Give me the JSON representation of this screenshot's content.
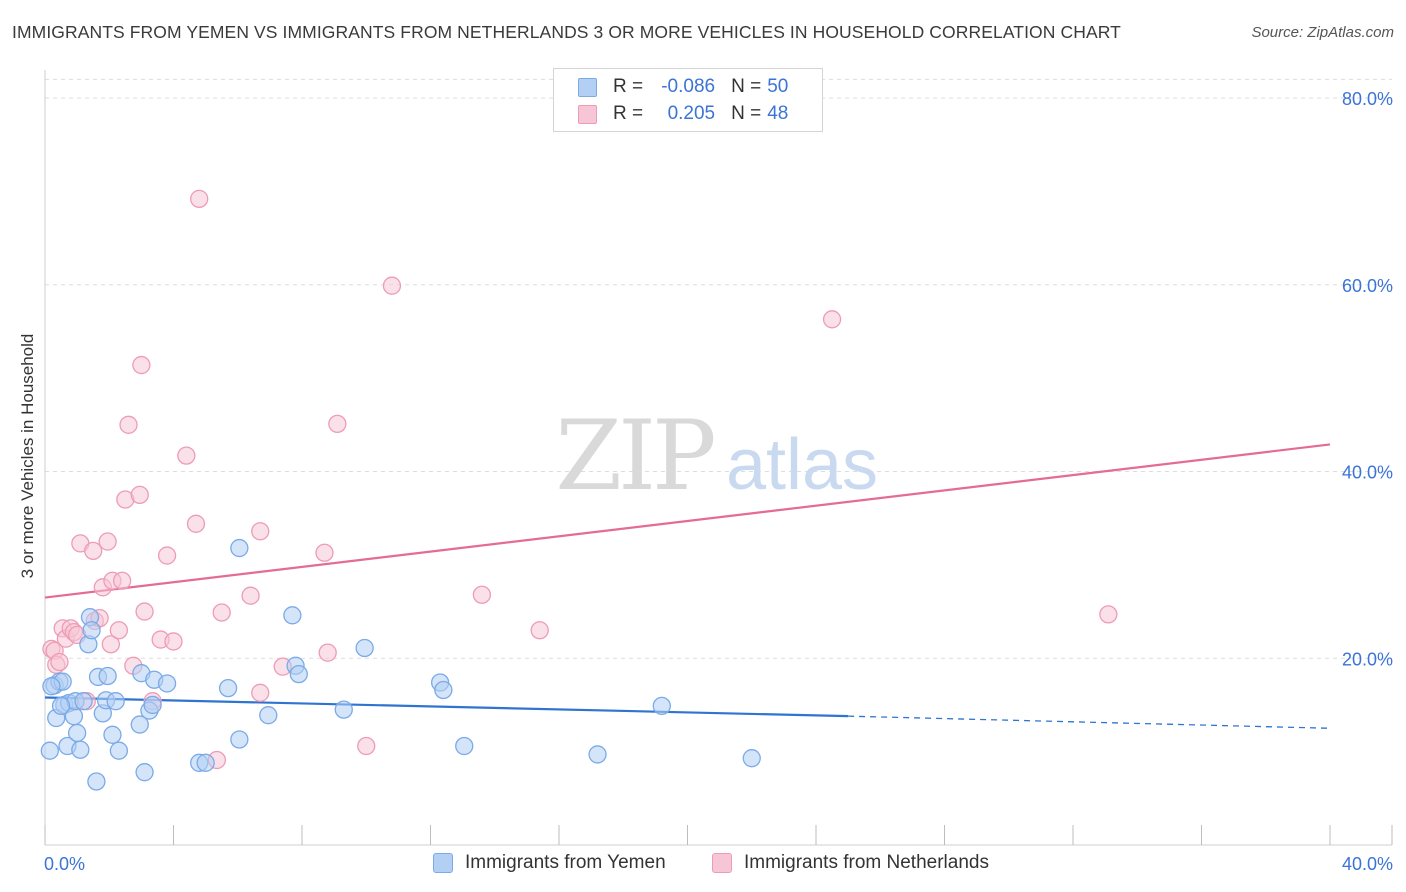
{
  "header": {
    "title": "IMMIGRANTS FROM YEMEN VS IMMIGRANTS FROM NETHERLANDS 3 OR MORE VEHICLES IN HOUSEHOLD CORRELATION CHART",
    "source": "Source: ZipAtlas.com"
  },
  "legend": {
    "yemen": {
      "r_label": "R =",
      "r_value": "-0.086",
      "n_label": "N =",
      "n_value": "50"
    },
    "netherlands": {
      "r_label": "R =",
      "r_value": "0.205",
      "n_label": "N =",
      "n_value": "48"
    }
  },
  "watermark": {
    "part1": "ZIP",
    "part2": "atlas"
  },
  "chart_data": {
    "type": "scatter",
    "title": "IMMIGRANTS FROM YEMEN VS IMMIGRANTS FROM NETHERLANDS 3 OR MORE VEHICLES IN HOUSEHOLD CORRELATION CHART",
    "xlabel": "",
    "ylabel": "3 or more Vehicles in Household",
    "xlim": [
      0,
      40
    ],
    "ylim": [
      0,
      83
    ],
    "x_tick_labels": [
      {
        "value": 0,
        "label": "0.0%"
      },
      {
        "value": 40,
        "label": "40.0%"
      }
    ],
    "y_tick_labels": [
      {
        "value": 20,
        "label": "20.0%"
      },
      {
        "value": 40,
        "label": "40.0%"
      },
      {
        "value": 60,
        "label": "60.0%"
      },
      {
        "value": 80,
        "label": "80.0%"
      }
    ],
    "grid": true,
    "series": [
      {
        "name": "Immigrants from Yemen",
        "color": "#7aaae8",
        "fill": "#b3cff4",
        "line_color": "#2f74d0",
        "trend": {
          "x0": 0,
          "y0": 15.8,
          "x1": 25,
          "y1": 13.8,
          "dash_to_x": 40,
          "dash_y1": 12.5
        },
        "points": [
          [
            0.15,
            10.1
          ],
          [
            0.3,
            17.1
          ],
          [
            0.35,
            13.6
          ],
          [
            0.45,
            17.5
          ],
          [
            0.55,
            17.5
          ],
          [
            0.6,
            15.0
          ],
          [
            0.7,
            10.6
          ],
          [
            0.75,
            15.2
          ],
          [
            0.9,
            13.8
          ],
          [
            0.95,
            15.4
          ],
          [
            1.0,
            12.0
          ],
          [
            1.1,
            10.2
          ],
          [
            1.2,
            15.4
          ],
          [
            1.35,
            21.5
          ],
          [
            1.4,
            24.4
          ],
          [
            1.45,
            23.0
          ],
          [
            1.6,
            6.8
          ],
          [
            1.65,
            18.0
          ],
          [
            1.8,
            14.1
          ],
          [
            1.9,
            15.5
          ],
          [
            1.95,
            18.1
          ],
          [
            2.1,
            11.8
          ],
          [
            2.2,
            15.4
          ],
          [
            2.3,
            10.1
          ],
          [
            2.95,
            12.9
          ],
          [
            3.0,
            18.4
          ],
          [
            3.1,
            7.8
          ],
          [
            3.25,
            14.4
          ],
          [
            3.35,
            15.0
          ],
          [
            3.4,
            17.7
          ],
          [
            3.8,
            17.3
          ],
          [
            4.8,
            8.8
          ],
          [
            5.0,
            8.8
          ],
          [
            5.7,
            16.8
          ],
          [
            6.05,
            11.3
          ],
          [
            6.05,
            31.8
          ],
          [
            6.95,
            13.9
          ],
          [
            7.7,
            24.6
          ],
          [
            7.8,
            19.2
          ],
          [
            7.9,
            18.3
          ],
          [
            9.3,
            14.5
          ],
          [
            9.95,
            21.1
          ],
          [
            12.3,
            17.4
          ],
          [
            12.4,
            16.6
          ],
          [
            13.05,
            10.6
          ],
          [
            17.2,
            9.7
          ],
          [
            19.2,
            14.9
          ],
          [
            22.0,
            9.3
          ],
          [
            0.2,
            17.0
          ],
          [
            0.5,
            14.9
          ]
        ]
      },
      {
        "name": "Immigrants from Netherlands",
        "color": "#ee9cb6",
        "fill": "#f6c6d6",
        "line_color": "#e46b95",
        "trend": {
          "x0": 0,
          "y0": 26.5,
          "x1": 40,
          "y1": 42.9
        },
        "points": [
          [
            0.2,
            21.0
          ],
          [
            0.3,
            20.8
          ],
          [
            0.35,
            19.3
          ],
          [
            0.45,
            19.6
          ],
          [
            0.55,
            23.2
          ],
          [
            0.65,
            22.1
          ],
          [
            0.8,
            23.2
          ],
          [
            0.9,
            22.8
          ],
          [
            1.0,
            22.5
          ],
          [
            1.1,
            32.3
          ],
          [
            1.3,
            15.4
          ],
          [
            1.5,
            31.5
          ],
          [
            1.55,
            24.0
          ],
          [
            1.7,
            24.3
          ],
          [
            1.8,
            27.6
          ],
          [
            1.95,
            32.5
          ],
          [
            2.05,
            21.5
          ],
          [
            2.1,
            28.3
          ],
          [
            2.3,
            23.0
          ],
          [
            2.4,
            28.3
          ],
          [
            2.5,
            37.0
          ],
          [
            2.6,
            45.0
          ],
          [
            2.75,
            19.2
          ],
          [
            2.95,
            37.5
          ],
          [
            3.0,
            51.4
          ],
          [
            3.1,
            25.0
          ],
          [
            3.35,
            15.4
          ],
          [
            3.6,
            22.0
          ],
          [
            3.8,
            31.0
          ],
          [
            4.0,
            21.8
          ],
          [
            4.4,
            41.7
          ],
          [
            4.7,
            34.4
          ],
          [
            4.8,
            69.2
          ],
          [
            5.35,
            9.1
          ],
          [
            5.5,
            24.9
          ],
          [
            6.4,
            26.7
          ],
          [
            6.7,
            33.6
          ],
          [
            6.7,
            16.3
          ],
          [
            7.4,
            19.1
          ],
          [
            8.7,
            31.3
          ],
          [
            8.8,
            20.6
          ],
          [
            9.1,
            45.1
          ],
          [
            10.0,
            10.6
          ],
          [
            10.8,
            59.9
          ],
          [
            13.6,
            26.8
          ],
          [
            15.4,
            23.0
          ],
          [
            24.5,
            56.3
          ],
          [
            33.1,
            24.7
          ]
        ]
      }
    ]
  },
  "bottom_legend": {
    "yemen": "Immigrants from Yemen",
    "netherlands": "Immigrants from Netherlands"
  }
}
